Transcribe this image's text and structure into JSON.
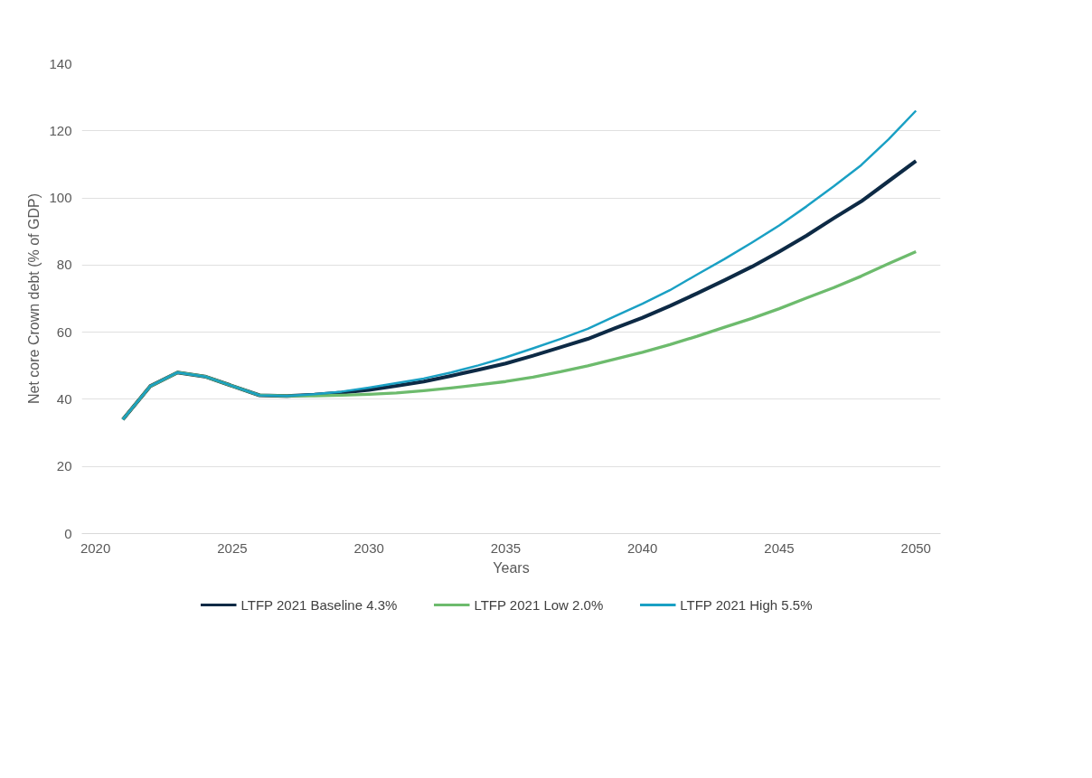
{
  "chart_data": {
    "type": "line",
    "xlabel": "Years",
    "ylabel": "Net core Crown debt (% of GDP)",
    "x": [
      2021,
      2022,
      2023,
      2024,
      2025,
      2026,
      2027,
      2028,
      2029,
      2030,
      2031,
      2032,
      2033,
      2034,
      2035,
      2036,
      2037,
      2038,
      2039,
      2040,
      2041,
      2042,
      2043,
      2044,
      2045,
      2046,
      2047,
      2048,
      2049,
      2050
    ],
    "series": [
      {
        "name": "LTFP 2021 Baseline 4.3%",
        "color": "#0d2a45",
        "values": [
          34,
          43.9,
          48,
          46.8,
          44,
          41.2,
          41,
          41.4,
          42.0,
          42.8,
          44.0,
          45.3,
          47.0,
          48.8,
          50.7,
          53.0,
          55.5,
          58.0,
          61.2,
          64.3,
          67.8,
          71.6,
          75.5,
          79.5,
          84.0,
          88.8,
          94.0,
          99.0,
          105.0,
          111
        ]
      },
      {
        "name": "LTFP 2021 Low 2.0%",
        "color": "#6dbb6d",
        "values": [
          34,
          43.9,
          48,
          46.8,
          44,
          41.2,
          41,
          41.0,
          41.2,
          41.5,
          41.9,
          42.6,
          43.4,
          44.3,
          45.3,
          46.6,
          48.2,
          50.0,
          52.0,
          54.0,
          56.3,
          58.8,
          61.5,
          64.1,
          67.0,
          70.2,
          73.3,
          76.7,
          80.4,
          84
        ]
      },
      {
        "name": "LTFP 2021 High 5.5%",
        "color": "#1aa0c4",
        "values": [
          34,
          43.9,
          48,
          46.8,
          44,
          41.2,
          41,
          41.5,
          42.3,
          43.5,
          44.8,
          46.2,
          48.0,
          50.1,
          52.5,
          55.2,
          58.0,
          61.0,
          64.8,
          68.5,
          72.5,
          77.2,
          81.8,
          86.7,
          91.8,
          97.5,
          103.5,
          109.8,
          117.5,
          126
        ]
      }
    ],
    "xlim": [
      2019.5,
      2050.9
    ],
    "xticks": [
      2020,
      2025,
      2030,
      2035,
      2040,
      2045,
      2050
    ],
    "ylim": [
      0,
      140
    ],
    "yticks": [
      0,
      20,
      40,
      60,
      80,
      100,
      120,
      140
    ],
    "grid": "y",
    "legend": "bottom",
    "marker": "none",
    "line_style": "solid"
  }
}
